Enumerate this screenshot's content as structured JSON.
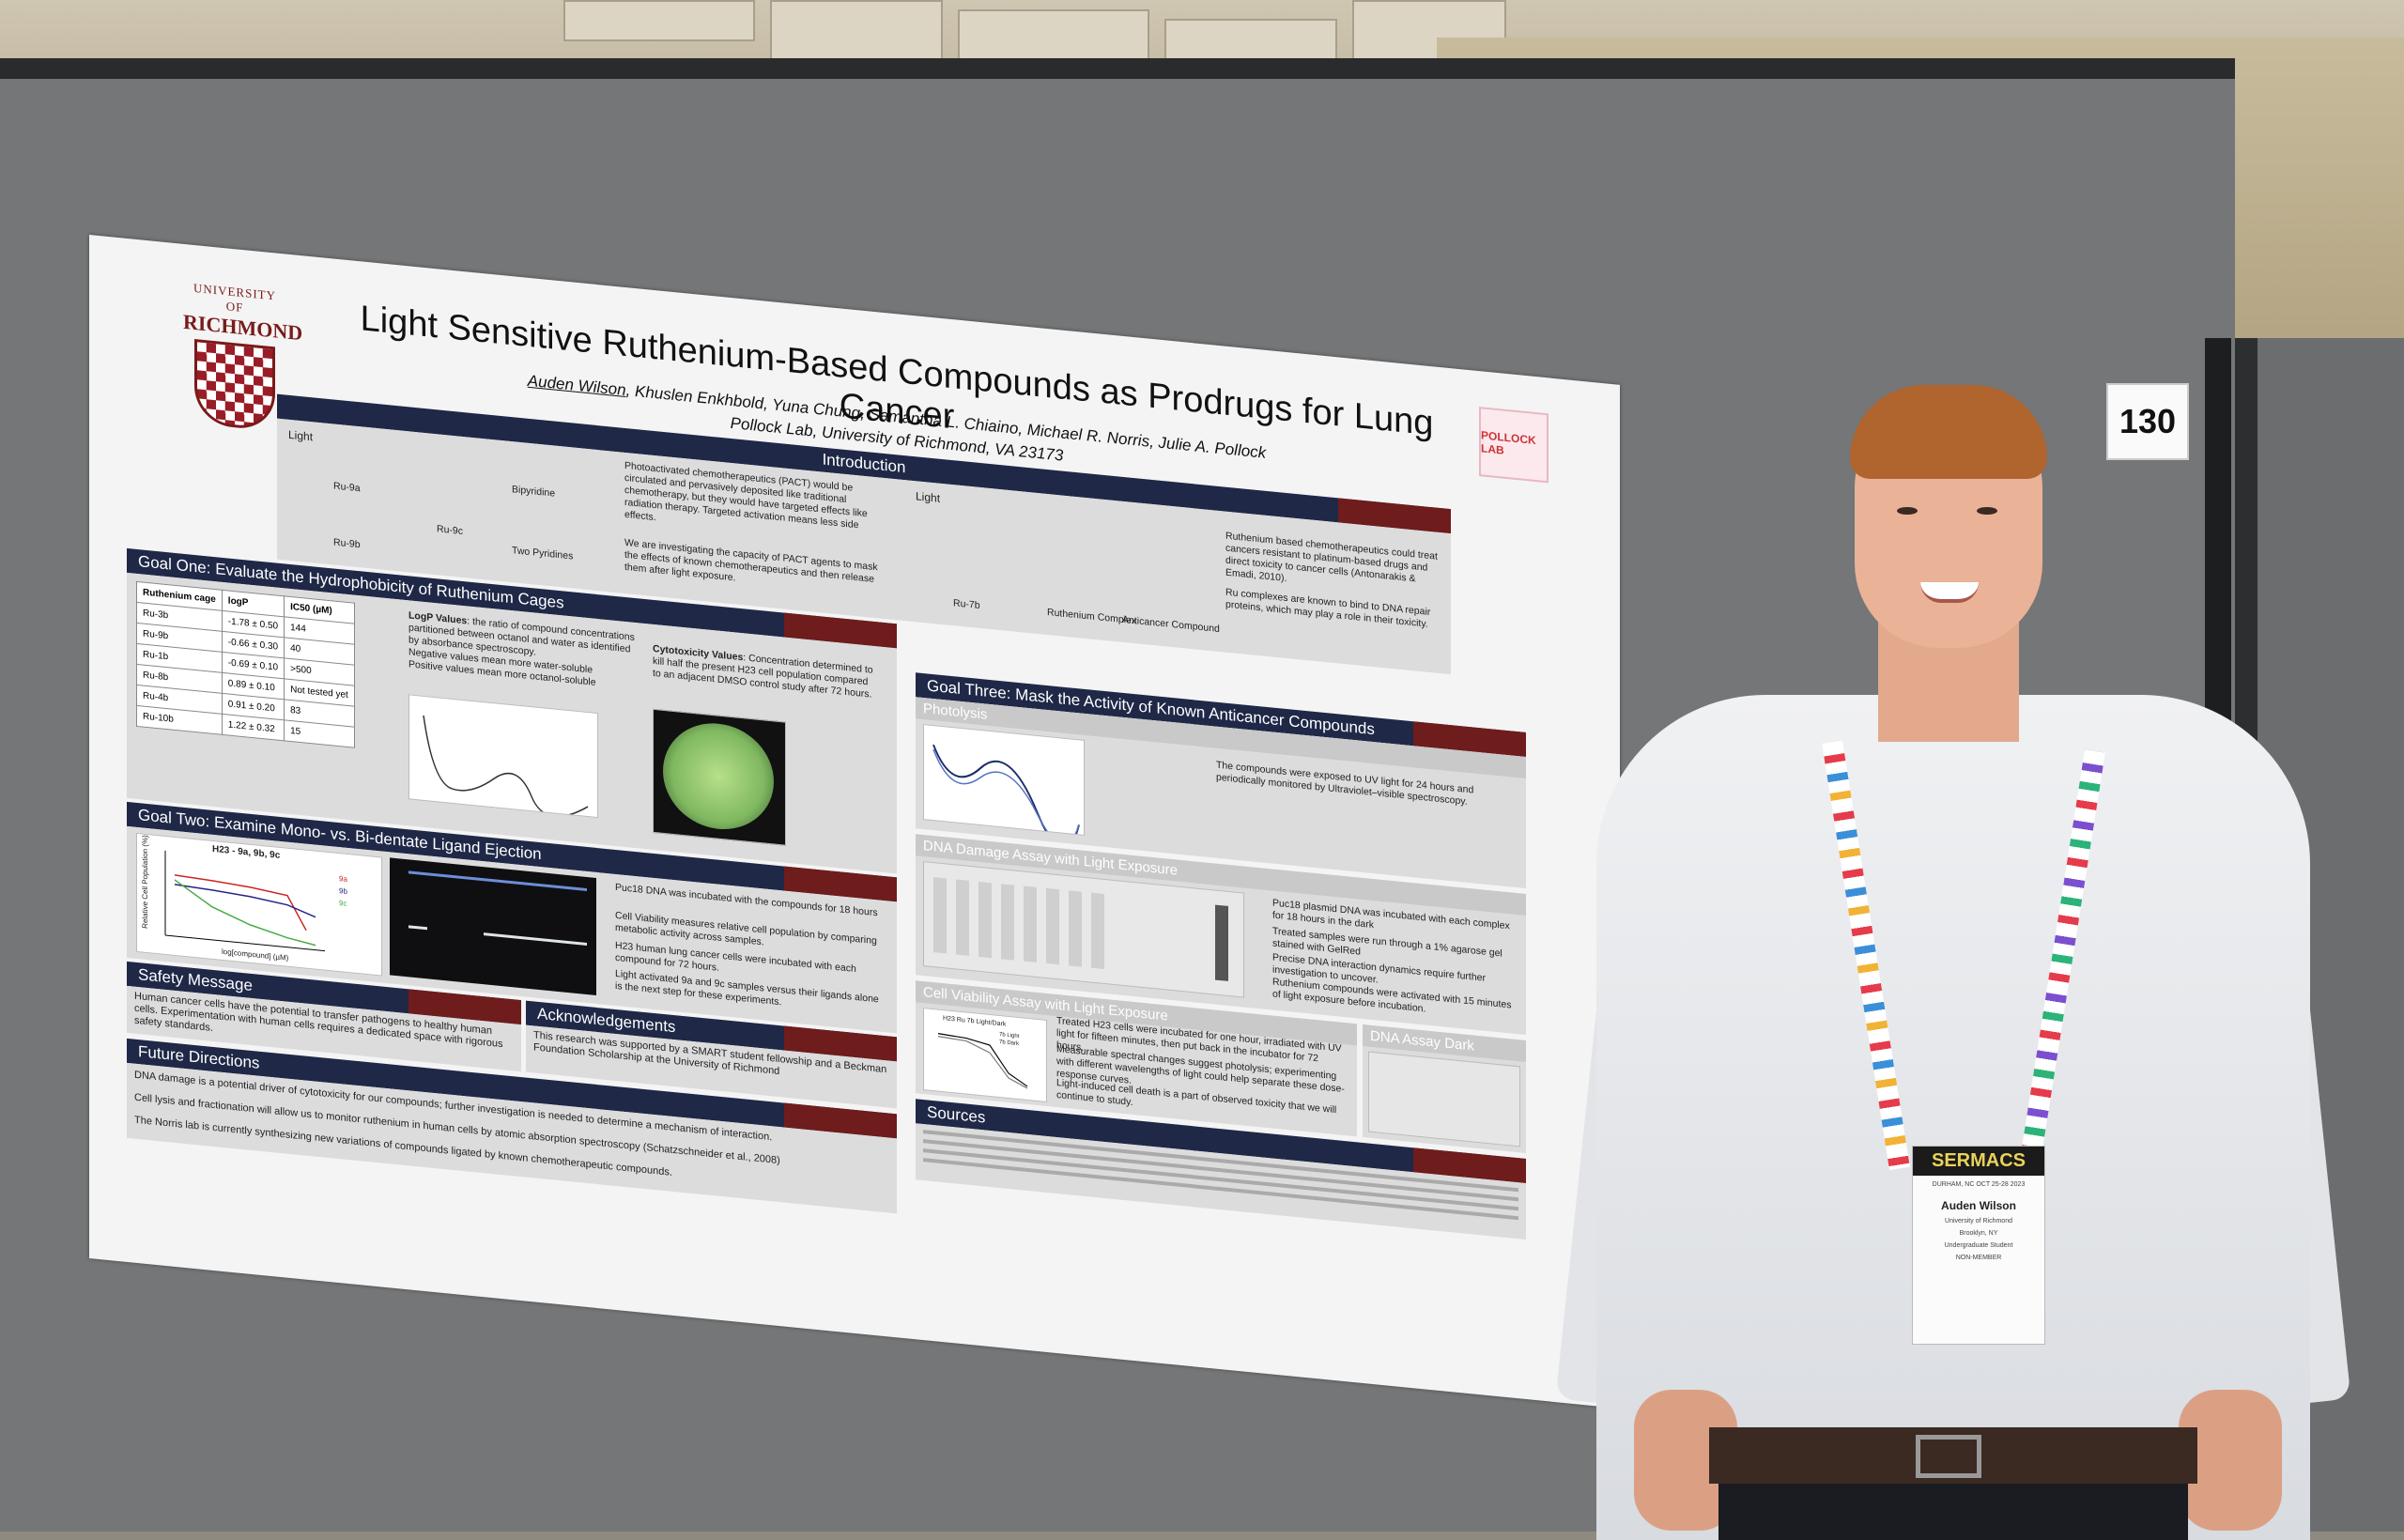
{
  "booth_number": "130",
  "poster": {
    "logo_top": "UNIVERSITY OF",
    "logo_name": "RICHMOND",
    "title": "Light Sensitive Ruthenium-Based Compounds as Prodrugs for Lung Cancer",
    "authors_lead": "Auden Wilson",
    "authors_rest": ", Khuslen Enkhbold, Yuna Chung, Samantha L. Chiaino, Michael R. Norris, Julie A. Pollock",
    "affiliation": "Pollock Lab, University of Richmond, VA 23173",
    "lab_logo": "POLLOCK LAB",
    "introduction": {
      "heading": "Introduction",
      "light_label": "Light",
      "scheme_labels": [
        "Ru-9a",
        "Ru-9b",
        "Ru-9c",
        "Bipyridine",
        "Two Pyridines"
      ],
      "text1": "Photoactivated chemotherapeutics (PACT) would be circulated and pervasively deposited like traditional chemotherapy, but they would have targeted effects like radiation therapy. Targeted activation means less side effects.",
      "text2": "We are investigating the capacity of PACT agents to mask the effects of known chemotherapeutics and then release them after light exposure.",
      "scheme2_labels": [
        "Ru-7b",
        "Ruthenium Complex",
        "Anticancer Compound"
      ],
      "text3": "Ruthenium based chemotherapeutics could treat cancers resistant to platinum-based drugs and direct toxicity to cancer cells (Antonarakis & Emadi, 2010).",
      "text4": "Ru complexes are known to bind to DNA repair proteins, which may play a role in their toxicity."
    },
    "goal_one": {
      "heading": "Goal One: Evaluate the Hydrophobicity of Ruthenium Cages",
      "table_headers": [
        "Ruthenium cage",
        "logP",
        "IC50 (µM)"
      ],
      "table_rows": [
        [
          "Ru-3b",
          "-1.78 ± 0.50",
          "144"
        ],
        [
          "Ru-9b",
          "-0.66 ± 0.30",
          "40"
        ],
        [
          "Ru-1b",
          "-0.69 ± 0.10",
          ">500"
        ],
        [
          "Ru-8b",
          "0.89 ± 0.10",
          "Not tested yet"
        ],
        [
          "Ru-4b",
          "0.91 ± 0.20",
          "83"
        ],
        [
          "Ru-10b",
          "1.22 ± 0.32",
          "15"
        ]
      ],
      "logp_label": "LogP Values",
      "logp_text": ": the ratio of compound concentrations partitioned between octanol and water as identified by absorbance spectroscopy.",
      "logp_neg": "Negative values mean more water-soluble",
      "logp_pos": "Positive values mean more octanol-soluble",
      "cyto_label": "Cytotoxicity Values",
      "cyto_text": ": Concentration determined to kill half the present H23 cell population compared to an adjacent DMSO control study after 72 hours."
    },
    "goal_two": {
      "heading": "Goal Two: Examine Mono- vs. Bi-dentate Ligand Ejection",
      "chart_title": "H23 - 9a, 9b, 9c",
      "y_label": "Relative Cell Population (%)",
      "x_label": "log[compound] (µM)",
      "legend": [
        "9a",
        "9b",
        "9c"
      ],
      "text1": "Puc18 DNA was incubated with the compounds for 18 hours",
      "text2": "Cell Viability measures relative cell population by comparing metabolic activity across samples.",
      "text3": "H23 human lung cancer cells were incubated with each compound for 72 hours.",
      "text4": "Light activated 9a and 9c samples versus their ligands alone is the next step for these experiments."
    },
    "goal_three": {
      "heading": "Goal Three: Mask the Activity of Known Anticancer Compounds",
      "photolysis_title": "Photolysis",
      "photolysis_text": "The compounds were exposed to UV light for 24 hours and periodically monitored by Ultraviolet–visible spectroscopy.",
      "dna_title": "DNA Damage Assay with Light Exposure",
      "dna_text1": "Puc18 plasmid DNA was incubated with each complex for 18 hours in the dark",
      "dna_text2": "Treated samples were run through a 1% agarose gel stained with GelRed",
      "dna_text3": "Precise DNA interaction dynamics require further investigation to uncover.",
      "dna_text4": "Ruthenium compounds were activated with 15 minutes of light exposure before incubation.",
      "viability_title": "Cell Viability Assay with Light Exposure",
      "viability_chart_title": "H23 Ru 7b Light/Dark",
      "viability_legend": [
        "7b Light",
        "7b Dark"
      ],
      "viability_text1": "Treated H23 cells were incubated for one hour, irradiated with UV light for fifteen minutes, then put back in the incubator for 72 hours.",
      "viability_text2": "Measurable spectral changes suggest photolysis; experimenting with different wavelengths of light could help separate these dose-response curves.",
      "viability_text3": "Light-induced cell death is a part of observed toxicity that we will continue to study.",
      "dna_dark_title": "DNA Assay Dark"
    },
    "safety": {
      "heading": "Safety Message",
      "text": "Human cancer cells have the potential to transfer pathogens to healthy human cells. Experimentation with human cells requires a dedicated space with rigorous safety standards."
    },
    "acknowledgements": {
      "heading": "Acknowledgements",
      "text": "This research was supported by a SMART student fellowship and a Beckman Foundation Scholarship at the University of Richmond"
    },
    "future": {
      "heading": "Future Directions",
      "items": [
        "DNA damage is a potential driver of cytotoxicity for our compounds; further investigation is needed to determine a mechanism of interaction.",
        "Cell lysis and fractionation will allow us to monitor ruthenium in human cells by atomic absorption spectroscopy (Schatzschneider et al., 2008)",
        "The Norris lab is currently synthesizing new variations of compounds ligated by known chemotherapeutic compounds."
      ]
    },
    "sources": {
      "heading": "Sources"
    }
  },
  "badge": {
    "event": "SERMACS",
    "event_sub": "DURHAM, NC  OCT 25-28  2023",
    "name": "Auden Wilson",
    "school": "University of Richmond",
    "city": "Brooklyn, NY",
    "role": "Undergraduate Student",
    "member": "NON-MEMBER"
  }
}
